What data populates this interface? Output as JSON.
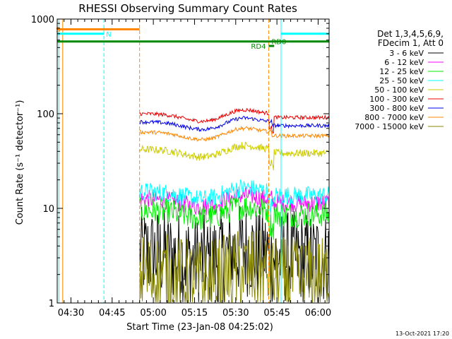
{
  "chart_data": {
    "type": "line",
    "title": "RHESSI Observing Summary Count Rates",
    "xlabel": "Start Time (23-Jan-08 04:25:02)",
    "ylabel": "Count Rate (s⁻¹ detector⁻¹)",
    "yscale": "log",
    "ylim": [
      1,
      1000
    ],
    "xlim_minutes": [
      25.0,
      124.0
    ],
    "x_ticks": [
      {
        "label": "04:30",
        "minute": 30
      },
      {
        "label": "04:45",
        "minute": 45
      },
      {
        "label": "05:00",
        "minute": 60
      },
      {
        "label": "05:15",
        "minute": 75
      },
      {
        "label": "05:30",
        "minute": 90
      },
      {
        "label": "05:45",
        "minute": 105
      },
      {
        "label": "06:00",
        "minute": 120
      }
    ],
    "y_ticks": [
      {
        "label": "1",
        "value": 1
      },
      {
        "label": "10",
        "value": 10
      },
      {
        "label": "100",
        "value": 100
      },
      {
        "label": "1000",
        "value": 1000
      }
    ],
    "legend_header": [
      "Det 1,3,4,5,6,9,",
      "FDecim 1, Att 0"
    ],
    "series": [
      {
        "name": "3 - 6 keV",
        "color": "#000000",
        "level": 3.3,
        "noise": 0.5,
        "gap_at_flag": false
      },
      {
        "name": "6 - 12 keV",
        "color": "#ff00ff",
        "level": 12.5,
        "noise": 0.1,
        "gap_at_flag": false
      },
      {
        "name": "12 - 25 keV",
        "color": "#00ee00",
        "level": 9.5,
        "noise": 0.14,
        "gap_at_flag": true
      },
      {
        "name": "25 - 50 keV",
        "color": "#00ffff",
        "level": 15.0,
        "noise": 0.1,
        "gap_at_flag": true
      },
      {
        "name": "50 - 100 keV",
        "color": "#cccc00",
        "level": 42.0,
        "noise": 0.04,
        "gap_at_flag": true
      },
      {
        "name": "100 - 300 keV",
        "color": "#ee0000",
        "level": 100.0,
        "noise": 0.02,
        "gap_at_flag": true
      },
      {
        "name": "300 - 800 keV",
        "color": "#0000ee",
        "level": 82.0,
        "noise": 0.02,
        "gap_at_flag": false
      },
      {
        "name": "800 - 7000 keV",
        "color": "#ff8800",
        "level": 64.0,
        "noise": 0.02,
        "gap_at_flag": false
      },
      {
        "name": "7000 - 15000 keV",
        "color": "#888800",
        "level": 2.0,
        "noise": 0.45,
        "gap_at_flag": false
      }
    ],
    "data_start_minute": 55.0,
    "flag_bars": [
      {
        "label": "S",
        "color": "#ff8800",
        "start": 25.0,
        "end": 55.0,
        "level": 780
      },
      {
        "label": "N",
        "color": "#00ffff",
        "start": 25.0,
        "end": 42.0,
        "level": 700
      },
      {
        "label": "",
        "color": "#00ffff",
        "start": 106.5,
        "end": 124.0,
        "level": 700
      },
      {
        "label": "RD0",
        "color": "#008800",
        "start": 25.0,
        "end": 124.0,
        "level": 580
      },
      {
        "label": "RD4",
        "color": "#008800",
        "start": 102.0,
        "end": 104.0,
        "level": 520
      }
    ],
    "vertical_lines": [
      {
        "minute": 25.6,
        "color": "#00ffff",
        "dashed": false
      },
      {
        "minute": 27.0,
        "color": "#ff8800",
        "dashed": false
      },
      {
        "minute": 42.0,
        "color": "#00ffff",
        "dashed": true
      },
      {
        "minute": 55.0,
        "color": "#ff8800",
        "dashed": true
      },
      {
        "minute": 102.0,
        "color": "#ff8800",
        "dashed": true
      },
      {
        "minute": 106.5,
        "color": "#00ffff",
        "dashed": false
      },
      {
        "minute": 124.0,
        "color": "#00ffff",
        "dashed": true
      }
    ]
  },
  "footer": {
    "date_stamp": "13-Oct-2021 17:20"
  }
}
